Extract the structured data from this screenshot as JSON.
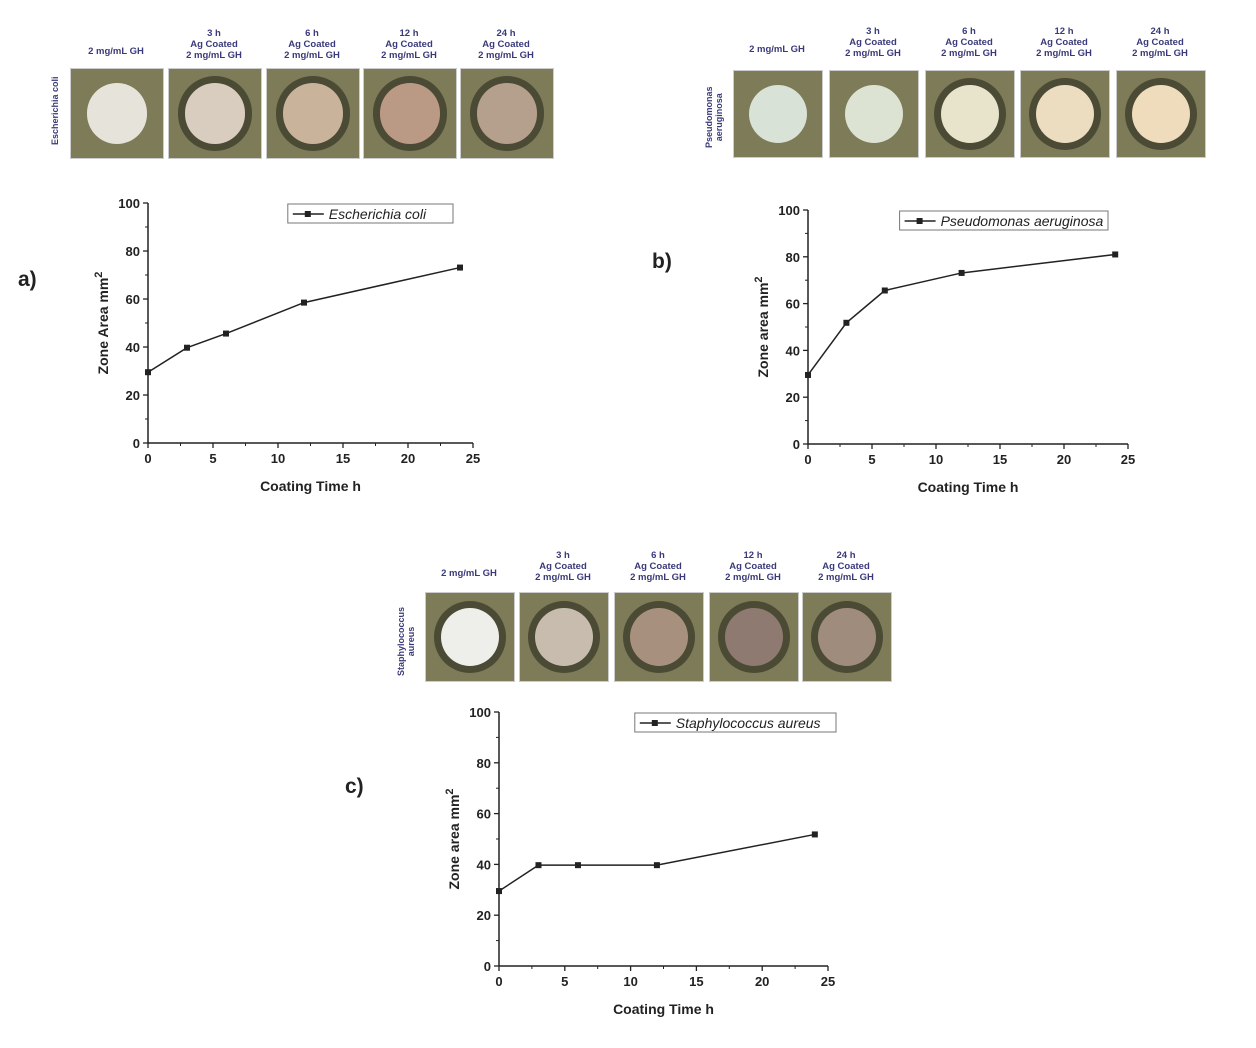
{
  "panels": [
    {
      "label": "a)",
      "organism": "Escherichia coli",
      "captions": [
        "2 mg/mL GH",
        "3 h\nAg Coated\n2 mg/mL GH",
        "6 h\nAg Coated\n2 mg/mL GH",
        "12 h\nAg Coated\n2 mg/mL GH",
        "24 h\nAg Coated\n2 mg/mL GH"
      ],
      "disc_colors": [
        "#e6e4da",
        "#d8cdbf",
        "#c9b39a",
        "#bb9a85",
        "#b5a08e"
      ],
      "halo": [
        false,
        true,
        true,
        true,
        true
      ]
    },
    {
      "label": "b)",
      "organism": "Pseudomonas\naeruginosa",
      "captions": [
        "2 mg/mL GH",
        "3 h\nAg Coated\n2 mg/mL GH",
        "6 h\nAg Coated\n2 mg/mL GH",
        "12 h\nAg Coated\n2 mg/mL GH",
        "24 h\nAg Coated\n2 mg/mL GH"
      ],
      "disc_colors": [
        "#d9e2d6",
        "#dde3d3",
        "#e8e4cc",
        "#ecdcc0",
        "#eedcbc"
      ],
      "halo": [
        false,
        false,
        true,
        true,
        true
      ]
    },
    {
      "label": "c)",
      "organism": "Staphylococcus\naureus",
      "captions": [
        "2 mg/mL GH",
        "3 h\nAg Coated\n2 mg/mL GH",
        "6 h\nAg Coated\n2 mg/mL GH",
        "12 h\nAg Coated\n2 mg/mL GH",
        "24 h\nAg Coated\n2 mg/mL GH"
      ],
      "disc_colors": [
        "#eeeeea",
        "#c7bcae",
        "#a7907e",
        "#8e7a70",
        "#a08c7c"
      ],
      "halo": [
        true,
        true,
        true,
        true,
        true
      ]
    }
  ],
  "chart_data": [
    {
      "type": "line",
      "xlabel": "Coating Time h",
      "ylabel": "Zone Area mm",
      "ylabel_sup": "2",
      "xlim": [
        0,
        25
      ],
      "ylim": [
        0,
        100
      ],
      "xticks": [
        "0",
        "5",
        "10",
        "15",
        "20",
        "25"
      ],
      "yticks": [
        "0",
        "20",
        "40",
        "60",
        "80",
        "100"
      ],
      "legend": "top-right",
      "series": [
        {
          "name": "Escherichia coli",
          "x": [
            0,
            3,
            6,
            12,
            24
          ],
          "y": [
            29.5,
            39.7,
            45.6,
            58.5,
            73.1
          ]
        }
      ]
    },
    {
      "type": "line",
      "xlabel": "Coating Time h",
      "ylabel": "Zone area mm",
      "ylabel_sup": "2",
      "xlim": [
        0,
        25
      ],
      "ylim": [
        0,
        100
      ],
      "xticks": [
        "0",
        "5",
        "10",
        "15",
        "20",
        "25"
      ],
      "yticks": [
        "0",
        "20",
        "40",
        "60",
        "80",
        "100"
      ],
      "legend": "top-right",
      "series": [
        {
          "name": "Pseudomonas aeruginosa",
          "x": [
            0,
            3,
            6,
            12,
            24
          ],
          "y": [
            29.5,
            51.8,
            65.6,
            73.1,
            81.0
          ]
        }
      ]
    },
    {
      "type": "line",
      "xlabel": "Coating Time h",
      "ylabel": "Zone area mm",
      "ylabel_sup": "2",
      "xlim": [
        0,
        25
      ],
      "ylim": [
        0,
        100
      ],
      "xticks": [
        "0",
        "5",
        "10",
        "15",
        "20",
        "25"
      ],
      "yticks": [
        "0",
        "20",
        "40",
        "60",
        "80",
        "100"
      ],
      "legend": "top-right",
      "series": [
        {
          "name": "Staphylococcus aureus",
          "x": [
            0,
            3,
            6,
            12,
            24
          ],
          "y": [
            29.5,
            39.7,
            39.7,
            39.7,
            51.8
          ]
        }
      ]
    }
  ]
}
